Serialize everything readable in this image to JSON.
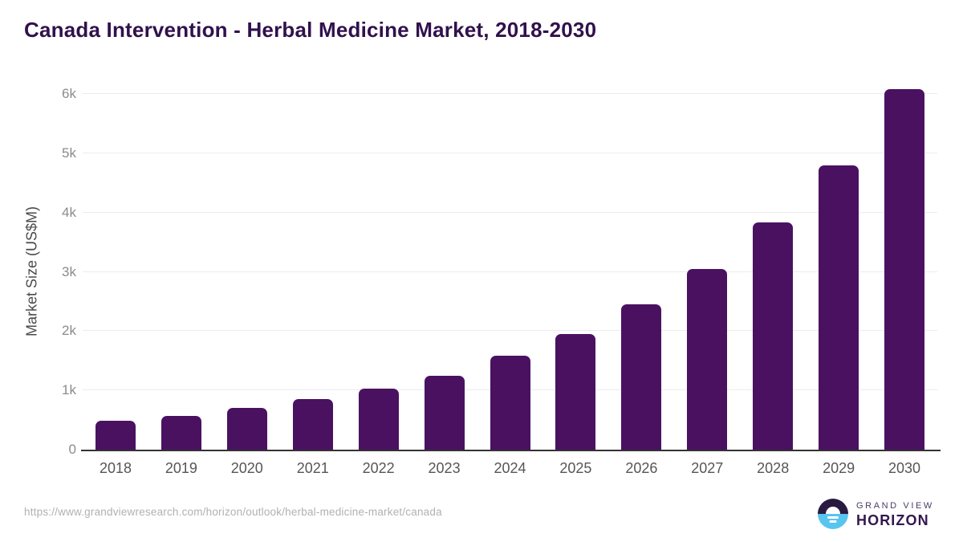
{
  "page": {
    "title": "Canada Intervention - Herbal Medicine Market, 2018-2030"
  },
  "chart_data": {
    "type": "bar",
    "title": "Canada Intervention - Herbal Medicine Market, 2018-2030",
    "categories": [
      "2018",
      "2019",
      "2020",
      "2021",
      "2022",
      "2023",
      "2024",
      "2025",
      "2026",
      "2027",
      "2028",
      "2029",
      "2030"
    ],
    "values": [
      490,
      570,
      700,
      860,
      1030,
      1250,
      1580,
      1950,
      2450,
      3050,
      3830,
      4800,
      6080
    ],
    "xlabel": "",
    "ylabel": "Market Size (US$M)",
    "ylim": [
      0,
      6300
    ],
    "ytick_values": [
      0,
      1000,
      2000,
      3000,
      4000,
      5000,
      6000
    ],
    "ytick_labels": [
      "0",
      "1k",
      "2k",
      "3k",
      "4k",
      "5k",
      "6k"
    ],
    "grid": "horizontal",
    "legend": "none",
    "bar_color": "#4a1161"
  },
  "colors": {
    "title": "#31114c",
    "bar": "#4a1161",
    "gridline": "#ececec",
    "axis_line": "#333333",
    "y_tick_text": "#8b8b8b",
    "x_tick_text": "#565656",
    "url_text": "#b1b1b1",
    "logo_dark_purple": "#281a41",
    "logo_sky_blue": "#58c4f0"
  },
  "footer": {
    "source_url": "https://www.grandviewresearch.com/horizon/outlook/herbal-medicine-market/canada",
    "logo": {
      "line1": "GRAND VIEW",
      "line2": "HORIZON"
    }
  }
}
